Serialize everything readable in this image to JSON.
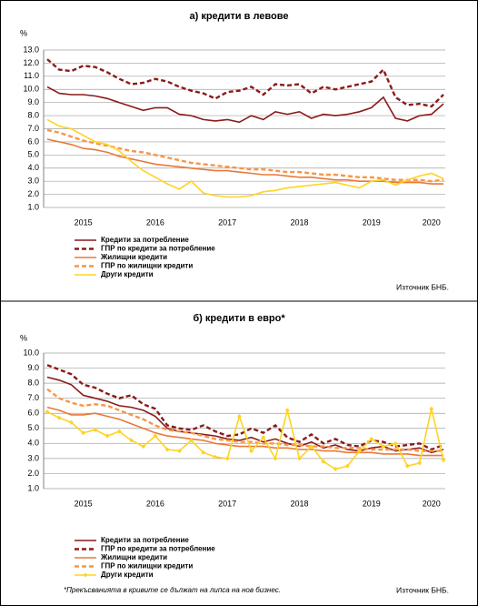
{
  "chart_data": [
    {
      "type": "line",
      "title": "а) кредити в левове",
      "ylabel": "%",
      "source": "Източник БНБ.",
      "legend": "bottom",
      "grid": true,
      "categories": [
        null,
        null,
        null,
        "2015",
        null,
        null,
        null,
        null,
        null,
        "2016",
        null,
        null,
        null,
        null,
        null,
        "2017",
        null,
        null,
        null,
        null,
        null,
        "2018",
        null,
        null,
        null,
        null,
        null,
        "2019",
        null,
        null,
        null,
        null,
        "2020",
        null
      ],
      "ylim": [
        1,
        13
      ],
      "yticks": [
        {
          "value": 1,
          "label": "1.0"
        },
        {
          "value": 2,
          "label": "2.0"
        },
        {
          "value": 3,
          "label": "3.0"
        },
        {
          "value": 4,
          "label": "4.0"
        },
        {
          "value": 5,
          "label": "5.0"
        },
        {
          "value": 6,
          "label": "6.0"
        },
        {
          "value": 7,
          "label": "7.0"
        },
        {
          "value": 8,
          "label": "8.0"
        },
        {
          "value": 9,
          "label": "9.0"
        },
        {
          "value": 10,
          "label": "10.0"
        },
        {
          "value": 11,
          "label": "11.0"
        },
        {
          "value": 12,
          "label": "12.0"
        },
        {
          "value": 13,
          "label": "13.0"
        }
      ],
      "series": [
        {
          "name": "Кредити за потребление",
          "color": "#8b1a1a",
          "dash": false,
          "values": [
            10.2,
            9.7,
            9.6,
            9.6,
            9.5,
            9.3,
            9.0,
            8.7,
            8.4,
            8.6,
            8.6,
            8.1,
            8.0,
            7.7,
            7.6,
            7.7,
            7.5,
            8.0,
            7.7,
            8.3,
            8.1,
            8.3,
            7.8,
            8.1,
            8.0,
            8.1,
            8.3,
            8.6,
            9.4,
            7.8,
            7.6,
            8.0,
            8.1,
            8.9
          ]
        },
        {
          "name": "ГПР по кредити за потребление",
          "color": "#8b1a1a",
          "dash": true,
          "values": [
            12.3,
            11.5,
            11.4,
            11.8,
            11.7,
            11.3,
            10.8,
            10.4,
            10.5,
            10.8,
            10.6,
            10.2,
            9.9,
            9.7,
            9.3,
            9.8,
            9.9,
            10.2,
            9.6,
            10.4,
            10.3,
            10.4,
            9.7,
            10.2,
            10.0,
            10.2,
            10.4,
            10.6,
            11.5,
            9.4,
            8.8,
            8.9,
            8.7,
            9.6
          ]
        },
        {
          "name": "Жилищни кредити",
          "color": "#e8793a",
          "dash": false,
          "values": [
            6.2,
            6.0,
            5.8,
            5.5,
            5.4,
            5.2,
            4.9,
            4.7,
            4.5,
            4.3,
            4.2,
            4.1,
            4.0,
            3.9,
            3.8,
            3.8,
            3.7,
            3.6,
            3.5,
            3.5,
            3.4,
            3.3,
            3.3,
            3.2,
            3.1,
            3.1,
            3.0,
            3.0,
            3.0,
            2.9,
            2.9,
            2.9,
            2.8,
            2.8
          ]
        },
        {
          "name": "ГПР по жилищни кредити",
          "color": "#f79646",
          "dash": true,
          "values": [
            6.9,
            6.7,
            6.4,
            6.1,
            5.9,
            5.7,
            5.5,
            5.3,
            5.2,
            5.0,
            4.8,
            4.6,
            4.4,
            4.3,
            4.2,
            4.1,
            4.0,
            3.9,
            3.9,
            3.8,
            3.7,
            3.7,
            3.6,
            3.5,
            3.5,
            3.4,
            3.3,
            3.3,
            3.2,
            3.1,
            3.1,
            3.1,
            3.0,
            3.1
          ]
        },
        {
          "name": "Други кредити",
          "color": "#ffd320",
          "dash": false,
          "values": [
            7.7,
            7.2,
            7.0,
            6.5,
            6.0,
            5.8,
            5.3,
            4.5,
            3.8,
            3.3,
            2.8,
            2.4,
            3.0,
            2.1,
            1.9,
            1.8,
            1.8,
            1.9,
            2.2,
            2.3,
            2.5,
            2.6,
            2.7,
            2.8,
            2.9,
            2.7,
            2.5,
            3.0,
            3.1,
            2.7,
            3.1,
            3.4,
            3.6,
            3.2
          ]
        }
      ]
    },
    {
      "type": "line",
      "title": "б) кредити в евро*",
      "ylabel": "%",
      "source": "Източник БНБ.",
      "note": "*Прекъсванията в кривите се дължат на липса на нов бизнес.",
      "legend": "bottom",
      "grid": true,
      "categories": [
        null,
        null,
        null,
        "2015",
        null,
        null,
        null,
        null,
        null,
        "2016",
        null,
        null,
        null,
        null,
        null,
        "2017",
        null,
        null,
        null,
        null,
        null,
        "2018",
        null,
        null,
        null,
        null,
        null,
        "2019",
        null,
        null,
        null,
        null,
        "2020",
        null
      ],
      "ylim": [
        1,
        10
      ],
      "yticks": [
        {
          "value": 1,
          "label": "1.0"
        },
        {
          "value": 2,
          "label": "2.0"
        },
        {
          "value": 3,
          "label": "3.0"
        },
        {
          "value": 4,
          "label": "4.0"
        },
        {
          "value": 5,
          "label": "5.0"
        },
        {
          "value": 6,
          "label": "6.0"
        },
        {
          "value": 7,
          "label": "7.0"
        },
        {
          "value": 8,
          "label": "8.0"
        },
        {
          "value": 9,
          "label": "9.0"
        },
        {
          "value": 10,
          "label": "10.0"
        }
      ],
      "series": [
        {
          "name": "Кредити за потребление",
          "color": "#8b1a1a",
          "dash": false,
          "values": [
            8.4,
            8.2,
            7.9,
            7.2,
            7.0,
            6.8,
            6.5,
            6.4,
            6.2,
            5.8,
            5.0,
            4.8,
            4.7,
            4.6,
            4.5,
            4.3,
            4.2,
            4.4,
            4.1,
            4.3,
            4.0,
            3.8,
            4.1,
            3.7,
            3.9,
            3.6,
            3.5,
            3.7,
            3.8,
            3.5,
            3.6,
            3.7,
            3.4,
            3.6
          ]
        },
        {
          "name": "ГПР по кредити за потребление",
          "color": "#8b1a1a",
          "dash": true,
          "values": [
            9.2,
            8.9,
            8.6,
            7.9,
            7.7,
            7.3,
            7.0,
            7.2,
            6.6,
            6.3,
            5.2,
            5.0,
            4.9,
            5.2,
            4.8,
            4.5,
            4.6,
            5.0,
            4.7,
            5.2,
            4.4,
            4.1,
            4.6,
            4.0,
            4.3,
            3.9,
            3.8,
            4.2,
            4.1,
            3.8,
            3.9,
            4.0,
            3.6,
            3.9
          ]
        },
        {
          "name": "Жилищни кредити",
          "color": "#e8793a",
          "dash": false,
          "values": [
            6.4,
            6.2,
            5.9,
            5.9,
            6.0,
            5.8,
            5.6,
            5.3,
            5.0,
            4.7,
            4.5,
            4.4,
            4.3,
            4.2,
            4.0,
            3.9,
            3.8,
            3.8,
            3.8,
            3.7,
            3.7,
            3.6,
            3.6,
            3.5,
            3.5,
            3.4,
            3.4,
            3.4,
            3.3,
            3.3,
            3.3,
            3.2,
            3.2,
            3.2
          ]
        },
        {
          "name": "ГПР по жилищни кредити",
          "color": "#f79646",
          "dash": true,
          "values": [
            7.6,
            7.0,
            6.7,
            6.5,
            6.6,
            6.5,
            6.2,
            5.9,
            5.6,
            5.2,
            4.9,
            4.8,
            4.7,
            4.5,
            4.3,
            4.2,
            4.1,
            4.1,
            4.0,
            4.0,
            3.9,
            3.9,
            3.8,
            3.8,
            3.7,
            3.7,
            3.7,
            3.6,
            3.6,
            3.6,
            3.6,
            3.5,
            3.5,
            3.5
          ]
        },
        {
          "name": "Други кредити",
          "color": "#ffd320",
          "dash": false,
          "markers": true,
          "values": [
            6.1,
            5.7,
            5.4,
            4.7,
            4.9,
            4.5,
            4.8,
            4.2,
            3.8,
            4.5,
            3.6,
            3.5,
            4.2,
            3.4,
            3.1,
            3.0,
            5.8,
            3.5,
            4.4,
            3.0,
            6.2,
            3.0,
            3.8,
            2.8,
            2.3,
            2.5,
            3.5,
            4.3,
            3.8,
            4.0,
            2.5,
            2.7,
            6.3,
            2.9
          ]
        }
      ]
    }
  ]
}
